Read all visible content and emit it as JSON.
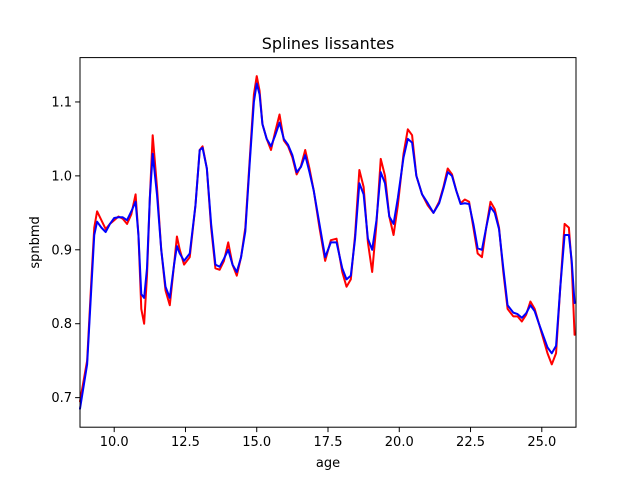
{
  "chart_data": {
    "type": "line",
    "title": "Splines lissantes",
    "xlabel": "age",
    "ylabel": "spnbmd",
    "xlim": [
      8.8,
      26.2
    ],
    "ylim": [
      0.66,
      1.16
    ],
    "xticks": [
      10.0,
      12.5,
      15.0,
      17.5,
      20.0,
      22.5,
      25.0
    ],
    "xtick_labels": [
      "10.0",
      "12.5",
      "15.0",
      "17.5",
      "20.0",
      "22.5",
      "25.0"
    ],
    "yticks": [
      0.7,
      0.8,
      0.9,
      1.0,
      1.1
    ],
    "ytick_labels": [
      "0.7",
      "0.8",
      "0.9",
      "1.0",
      "1.1"
    ],
    "grid": false,
    "legend": false,
    "series": [
      {
        "color": "#ff0000",
        "x": [
          8.8,
          9.05,
          9.2,
          9.3,
          9.4,
          9.55,
          9.7,
          9.85,
          10.0,
          10.15,
          10.3,
          10.45,
          10.6,
          10.75,
          10.85,
          10.95,
          11.05,
          11.15,
          11.25,
          11.35,
          11.5,
          11.65,
          11.8,
          11.95,
          12.1,
          12.2,
          12.3,
          12.45,
          12.65,
          12.85,
          13.0,
          13.1,
          13.25,
          13.4,
          13.55,
          13.7,
          13.85,
          14.0,
          14.15,
          14.3,
          14.45,
          14.6,
          14.75,
          14.9,
          15.0,
          15.1,
          15.2,
          15.35,
          15.5,
          15.65,
          15.8,
          15.95,
          16.1,
          16.25,
          16.4,
          16.55,
          16.7,
          16.85,
          17.0,
          17.2,
          17.4,
          17.6,
          17.8,
          18.0,
          18.15,
          18.3,
          18.45,
          18.6,
          18.75,
          18.9,
          19.05,
          19.2,
          19.35,
          19.5,
          19.65,
          19.8,
          19.95,
          20.15,
          20.3,
          20.45,
          20.6,
          20.8,
          21.0,
          21.2,
          21.4,
          21.55,
          21.7,
          21.85,
          22.0,
          22.15,
          22.3,
          22.45,
          22.6,
          22.75,
          22.9,
          23.05,
          23.2,
          23.35,
          23.5,
          23.65,
          23.8,
          24.0,
          24.15,
          24.3,
          24.45,
          24.6,
          24.75,
          24.9,
          25.05,
          25.2,
          25.35,
          25.5,
          25.65,
          25.8,
          25.95,
          26.05,
          26.15
        ],
        "y": [
          0.695,
          0.75,
          0.86,
          0.93,
          0.952,
          0.94,
          0.928,
          0.935,
          0.94,
          0.945,
          0.942,
          0.935,
          0.948,
          0.975,
          0.92,
          0.82,
          0.8,
          0.865,
          0.97,
          1.055,
          0.985,
          0.9,
          0.845,
          0.825,
          0.88,
          0.918,
          0.9,
          0.88,
          0.89,
          0.96,
          1.035,
          1.04,
          1.01,
          0.93,
          0.875,
          0.873,
          0.885,
          0.91,
          0.88,
          0.865,
          0.89,
          0.93,
          1.02,
          1.11,
          1.135,
          1.115,
          1.07,
          1.05,
          1.035,
          1.06,
          1.083,
          1.048,
          1.04,
          1.025,
          1.002,
          1.013,
          1.035,
          1.01,
          0.98,
          0.93,
          0.885,
          0.913,
          0.915,
          0.87,
          0.85,
          0.86,
          0.92,
          1.008,
          0.985,
          0.91,
          0.87,
          0.935,
          1.023,
          1.0,
          0.945,
          0.92,
          0.96,
          1.03,
          1.063,
          1.055,
          1.0,
          0.975,
          0.96,
          0.95,
          0.965,
          0.985,
          1.01,
          1.002,
          0.98,
          0.963,
          0.968,
          0.965,
          0.93,
          0.895,
          0.89,
          0.93,
          0.965,
          0.955,
          0.93,
          0.87,
          0.82,
          0.81,
          0.81,
          0.803,
          0.812,
          0.83,
          0.82,
          0.8,
          0.78,
          0.76,
          0.745,
          0.76,
          0.85,
          0.935,
          0.93,
          0.88,
          0.785
        ]
      },
      {
        "color": "#0000ff",
        "x": [
          8.8,
          9.05,
          9.2,
          9.3,
          9.4,
          9.55,
          9.7,
          9.85,
          10.0,
          10.15,
          10.3,
          10.45,
          10.6,
          10.75,
          10.85,
          10.95,
          11.05,
          11.15,
          11.25,
          11.35,
          11.5,
          11.65,
          11.8,
          11.95,
          12.1,
          12.2,
          12.3,
          12.45,
          12.65,
          12.85,
          13.0,
          13.1,
          13.25,
          13.4,
          13.55,
          13.7,
          13.85,
          14.0,
          14.15,
          14.3,
          14.45,
          14.6,
          14.75,
          14.9,
          15.0,
          15.1,
          15.2,
          15.35,
          15.5,
          15.65,
          15.8,
          15.95,
          16.1,
          16.25,
          16.4,
          16.55,
          16.7,
          16.85,
          17.0,
          17.2,
          17.4,
          17.6,
          17.8,
          18.0,
          18.15,
          18.3,
          18.45,
          18.6,
          18.75,
          18.9,
          19.05,
          19.2,
          19.35,
          19.5,
          19.65,
          19.8,
          19.95,
          20.15,
          20.3,
          20.45,
          20.6,
          20.8,
          21.0,
          21.2,
          21.4,
          21.55,
          21.7,
          21.85,
          22.0,
          22.15,
          22.3,
          22.45,
          22.6,
          22.75,
          22.9,
          23.05,
          23.2,
          23.35,
          23.5,
          23.65,
          23.8,
          24.0,
          24.15,
          24.3,
          24.45,
          24.6,
          24.75,
          24.9,
          25.05,
          25.2,
          25.35,
          25.5,
          25.65,
          25.8,
          25.95,
          26.05,
          26.15
        ],
        "y": [
          0.685,
          0.745,
          0.85,
          0.92,
          0.938,
          0.93,
          0.924,
          0.935,
          0.943,
          0.944,
          0.944,
          0.94,
          0.952,
          0.965,
          0.92,
          0.84,
          0.835,
          0.875,
          0.97,
          1.03,
          0.975,
          0.9,
          0.85,
          0.835,
          0.88,
          0.905,
          0.895,
          0.885,
          0.895,
          0.96,
          1.035,
          1.038,
          1.01,
          0.935,
          0.88,
          0.877,
          0.888,
          0.9,
          0.88,
          0.87,
          0.89,
          0.925,
          1.015,
          1.1,
          1.125,
          1.11,
          1.07,
          1.05,
          1.04,
          1.055,
          1.072,
          1.05,
          1.042,
          1.028,
          1.005,
          1.012,
          1.028,
          1.005,
          0.98,
          0.935,
          0.89,
          0.91,
          0.91,
          0.875,
          0.86,
          0.865,
          0.915,
          0.99,
          0.975,
          0.915,
          0.9,
          0.94,
          1.005,
          0.99,
          0.945,
          0.935,
          0.97,
          1.025,
          1.05,
          1.045,
          1.0,
          0.975,
          0.963,
          0.95,
          0.963,
          0.983,
          1.005,
          1.0,
          0.98,
          0.962,
          0.963,
          0.962,
          0.935,
          0.902,
          0.9,
          0.93,
          0.958,
          0.95,
          0.928,
          0.875,
          0.825,
          0.815,
          0.813,
          0.808,
          0.814,
          0.825,
          0.817,
          0.8,
          0.784,
          0.768,
          0.76,
          0.77,
          0.85,
          0.92,
          0.92,
          0.885,
          0.828
        ]
      }
    ]
  }
}
